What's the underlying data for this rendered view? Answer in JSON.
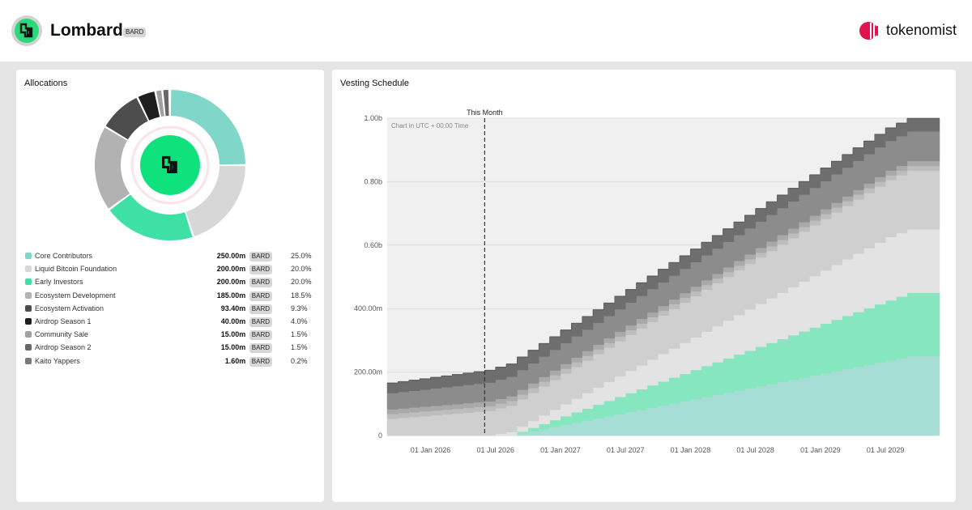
{
  "header": {
    "project_name": "Lombard",
    "symbol": "BARD",
    "brand": "tokenomist"
  },
  "allocations": {
    "title": "Allocations",
    "items": [
      {
        "label": "Core Contributors",
        "amount": "250.00m",
        "symbol": "BARD",
        "percent": "25.0%",
        "value": 25.0,
        "color": "#80d6c9"
      },
      {
        "label": "Liquid Bitcoin Foundation",
        "amount": "200.00m",
        "symbol": "BARD",
        "percent": "20.0%",
        "value": 20.0,
        "color": "#d7d7d7"
      },
      {
        "label": "Early Investors",
        "amount": "200.00m",
        "symbol": "BARD",
        "percent": "20.0%",
        "value": 20.0,
        "color": "#3fe0a5"
      },
      {
        "label": "Ecosystem Development",
        "amount": "185.00m",
        "symbol": "BARD",
        "percent": "18.5%",
        "value": 18.5,
        "color": "#b2b2b2"
      },
      {
        "label": "Ecosystem Activation",
        "amount": "93.40m",
        "symbol": "BARD",
        "percent": "9.3%",
        "value": 9.34,
        "color": "#4d4d4d"
      },
      {
        "label": "Airdrop Season 1",
        "amount": "40.00m",
        "symbol": "BARD",
        "percent": "4.0%",
        "value": 4.0,
        "color": "#1e1e1e"
      },
      {
        "label": "Community Sale",
        "amount": "15.00m",
        "symbol": "BARD",
        "percent": "1.5%",
        "value": 1.5,
        "color": "#a0a0a0"
      },
      {
        "label": "Airdrop Season 2",
        "amount": "15.00m",
        "symbol": "BARD",
        "percent": "1.5%",
        "value": 1.5,
        "color": "#666666"
      },
      {
        "label": "Kaito Yappers",
        "amount": "1.60m",
        "symbol": "BARD",
        "percent": "0.2%",
        "value": 0.16,
        "color": "#7a7a7a"
      }
    ]
  },
  "vesting": {
    "title": "Vesting Schedule",
    "marker_label": "This Month",
    "chart_note": "Chart in UTC + 00:00 Time"
  },
  "chart_data": {
    "type": "area",
    "stacked": true,
    "x_start": "2025-09",
    "x_end": "2029-12",
    "marker_date": "2026-06",
    "ylim": [
      0,
      1000000000
    ],
    "y_ticks": [
      0,
      200000000,
      400000000,
      600000000,
      800000000,
      1000000000
    ],
    "y_tick_labels": [
      "0",
      "200.00m",
      "400.00m",
      "0.60b",
      "0.80b",
      "1.00b"
    ],
    "x_ticks": [
      "2026-01",
      "2026-07",
      "2027-01",
      "2027-07",
      "2028-01",
      "2028-07",
      "2029-01",
      "2029-07"
    ],
    "x_tick_labels": [
      "01 Jan 2026",
      "01 Jul 2026",
      "01 Jan 2027",
      "01 Jul 2027",
      "01 Jan 2028",
      "01 Jul 2028",
      "01 Jan 2029",
      "01 Jul 2029"
    ],
    "grid": true,
    "series": [
      {
        "name": "Core Contributors",
        "color": "#a6ddd4",
        "start": "2026-09",
        "end": "2029-09",
        "initial": 0,
        "final": 250000000
      },
      {
        "name": "Early Investors",
        "color": "#85e6bf",
        "start": "2026-09",
        "end": "2029-09",
        "initial": 0,
        "final": 200000000
      },
      {
        "name": "Liquid Bitcoin Foundation",
        "color": "#e3e3e3",
        "start": "2026-07",
        "end": "2029-07",
        "initial": 0,
        "final": 200000000
      },
      {
        "name": "Ecosystem Development",
        "color": "#cfcfcf",
        "start": "2025-09",
        "end": "2029-09",
        "initial": 50000000,
        "final": 185000000
      },
      {
        "name": "Airdrop Season 2",
        "color": "#bdbdbd",
        "start": "2025-09",
        "end": "2025-09",
        "initial": 15000000,
        "final": 15000000
      },
      {
        "name": "Community Sale",
        "color": "#a9a9a9",
        "start": "2025-09",
        "end": "2025-09",
        "initial": 15000000,
        "final": 15000000
      },
      {
        "name": "Ecosystem Activation",
        "color": "#8c8c8c",
        "start": "2025-09",
        "end": "2029-06",
        "initial": 50000000,
        "final": 93400000
      },
      {
        "name": "Airdrop Season 1",
        "color": "#6e6e6e",
        "start": "2025-09",
        "end": "2026-09",
        "initial": 30000000,
        "final": 40000000
      },
      {
        "name": "Kaito Yappers",
        "color": "#5a5a5a",
        "start": "2025-09",
        "end": "2025-09",
        "initial": 1600000,
        "final": 1600000
      }
    ]
  }
}
